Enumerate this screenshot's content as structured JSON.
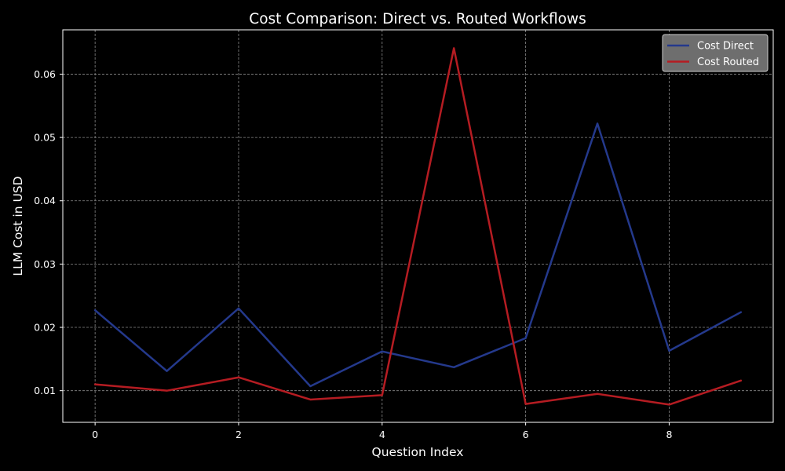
{
  "chart_data": {
    "type": "line",
    "title": "Cost Comparison: Direct vs. Routed Workflows",
    "xlabel": "Question Index",
    "ylabel": "LLM Cost in USD",
    "x": [
      0,
      1,
      2,
      3,
      4,
      5,
      6,
      7,
      8,
      9
    ],
    "xlim": [
      -0.45,
      9.45
    ],
    "ylim": [
      0.005,
      0.067
    ],
    "xticks": [
      0,
      2,
      4,
      6,
      8
    ],
    "yticks": [
      0.01,
      0.02,
      0.03,
      0.04,
      0.05,
      0.06
    ],
    "ytick_labels": [
      "0.01",
      "0.02",
      "0.03",
      "0.04",
      "0.05",
      "0.06"
    ],
    "grid": true,
    "legend_position": "top-right",
    "series": [
      {
        "name": "Cost Direct",
        "color": "#24398c",
        "values": [
          0.0227,
          0.0131,
          0.023,
          0.0107,
          0.0162,
          0.0137,
          0.0183,
          0.0522,
          0.0163,
          0.0224
        ]
      },
      {
        "name": "Cost Routed",
        "color": "#b51c22",
        "values": [
          0.011,
          0.01,
          0.0121,
          0.0086,
          0.0093,
          0.0641,
          0.0079,
          0.0095,
          0.0078,
          0.0116
        ]
      }
    ]
  }
}
